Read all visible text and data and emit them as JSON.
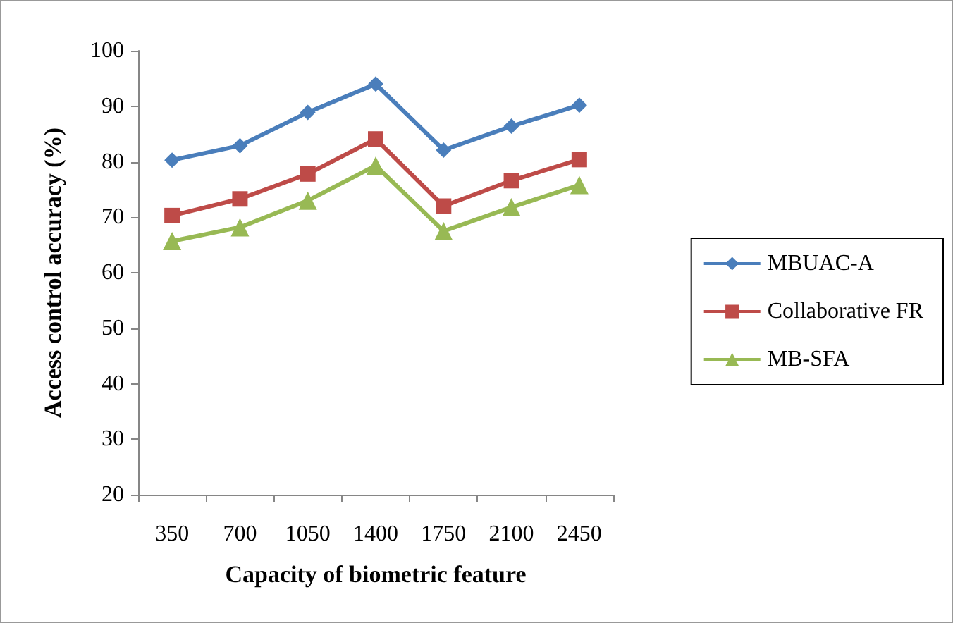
{
  "chart_data": {
    "type": "line",
    "xlabel": "Capacity of biometric feature",
    "ylabel": "Access control accuracy (%)",
    "categories": [
      "350",
      "700",
      "1050",
      "1400",
      "1750",
      "2100",
      "2450"
    ],
    "series": [
      {
        "name": "MBUAC-A",
        "color": "#4a7ebb",
        "marker": "diamond",
        "values": [
          80.3,
          82.9,
          88.9,
          94.0,
          82.1,
          86.4,
          90.2
        ]
      },
      {
        "name": "Collaborative FR",
        "color": "#be4b48",
        "marker": "square",
        "values": [
          70.3,
          73.3,
          77.8,
          84.1,
          72.0,
          76.6,
          80.4
        ]
      },
      {
        "name": "MB-SFA",
        "color": "#98b954",
        "marker": "triangle",
        "values": [
          65.7,
          68.2,
          73.0,
          79.3,
          67.5,
          71.8,
          75.8
        ]
      }
    ],
    "ylim": [
      20,
      100
    ],
    "yticks": [
      20,
      30,
      40,
      50,
      60,
      70,
      80,
      90,
      100
    ],
    "grid": false,
    "legend": "right",
    "line_style": "solid"
  }
}
